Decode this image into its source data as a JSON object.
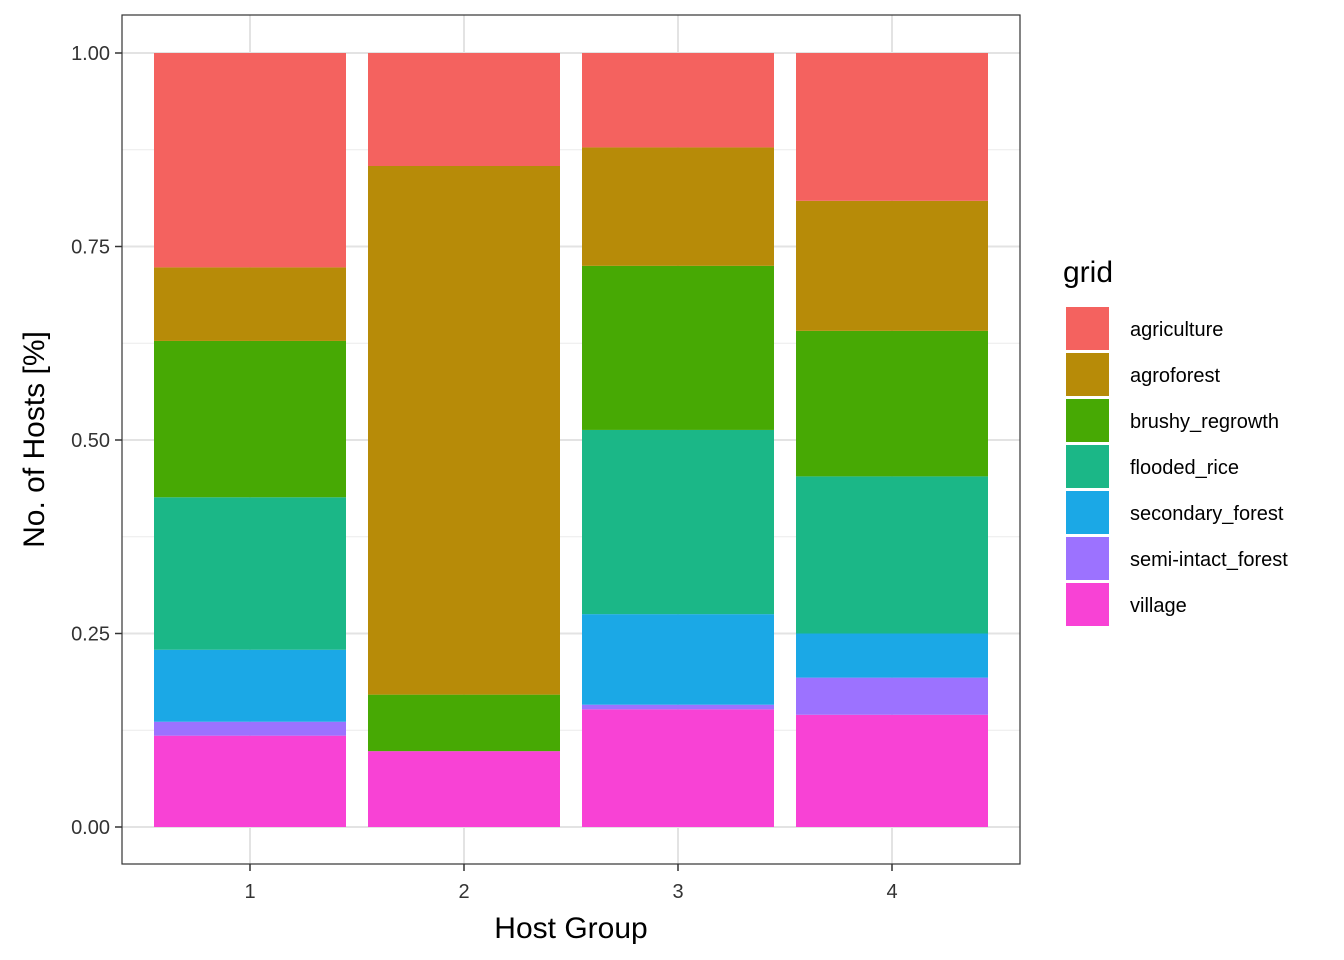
{
  "chart_data": {
    "type": "bar",
    "stacked": true,
    "normalized": true,
    "categories": [
      "1",
      "2",
      "3",
      "4"
    ],
    "xlabel": "Host Group",
    "ylabel": "No. of Hosts [%]",
    "ylim": [
      0,
      1
    ],
    "yticks": [
      "0.00",
      "0.25",
      "0.50",
      "0.75",
      "1.00"
    ],
    "grid": true,
    "legend": {
      "title": "grid",
      "position": "right"
    },
    "series": [
      {
        "name": "village",
        "color": "#F842D5",
        "values": [
          0.118,
          0.098,
          0.152,
          0.145
        ]
      },
      {
        "name": "semi-intact_forest",
        "color": "#9C72FF",
        "values": [
          0.018,
          0.0,
          0.006,
          0.048
        ]
      },
      {
        "name": "secondary_forest",
        "color": "#1BA8E6",
        "values": [
          0.093,
          0.0,
          0.117,
          0.057
        ]
      },
      {
        "name": "flooded_rice",
        "color": "#1BB787",
        "values": [
          0.197,
          0.0,
          0.238,
          0.203
        ]
      },
      {
        "name": "brushy_regrowth",
        "color": "#47A904",
        "values": [
          0.202,
          0.073,
          0.212,
          0.188
        ]
      },
      {
        "name": "agroforest",
        "color": "#B78B08",
        "values": [
          0.095,
          0.683,
          0.153,
          0.168
        ]
      },
      {
        "name": "agriculture",
        "color": "#F4625F",
        "values": [
          0.277,
          0.146,
          0.122,
          0.191
        ]
      }
    ],
    "legend_order": [
      "agriculture",
      "agroforest",
      "brushy_regrowth",
      "flooded_rice",
      "secondary_forest",
      "semi-intact_forest",
      "village"
    ]
  }
}
